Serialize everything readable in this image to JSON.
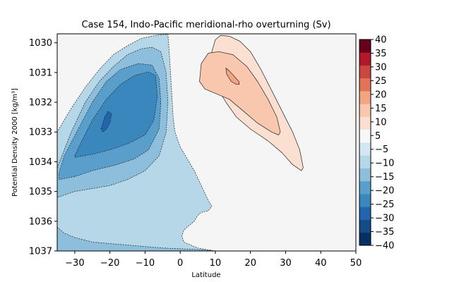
{
  "chart_data": {
    "type": "contour",
    "title": "Case 154, Indo-Pacific meridional-rho overturning (Sv)",
    "xlabel": "Latitude",
    "ylabel": "Potential Density 2000 [kg/m³]",
    "xlim": [
      -35,
      50
    ],
    "ylim": [
      1037,
      1029.7
    ],
    "xticks": [
      -30,
      -20,
      -10,
      0,
      10,
      20,
      30,
      40,
      50
    ],
    "yticks": [
      1030,
      1031,
      1032,
      1033,
      1034,
      1035,
      1036,
      1037
    ],
    "colorbar": {
      "ticks": [
        -40,
        -35,
        -30,
        -25,
        -20,
        -15,
        -10,
        -5,
        5,
        10,
        15,
        20,
        25,
        30,
        35,
        40
      ],
      "levels": [
        {
          "min": -40,
          "max": -35,
          "color": "#053061"
        },
        {
          "min": -35,
          "max": -30,
          "color": "#134c87"
        },
        {
          "min": -30,
          "max": -25,
          "color": "#2166ac"
        },
        {
          "min": -25,
          "max": -20,
          "color": "#3a87bd"
        },
        {
          "min": -20,
          "max": -15,
          "color": "#5a9fcb"
        },
        {
          "min": -15,
          "max": -10,
          "color": "#8dbfdc"
        },
        {
          "min": -10,
          "max": -5,
          "color": "#b6d7e8"
        },
        {
          "min": -5,
          "max": 0,
          "color": "#d4e6f1"
        },
        {
          "min": 0,
          "max": 5,
          "color": "#f7f7f7"
        },
        {
          "min": 5,
          "max": 10,
          "color": "#fbe0d1"
        },
        {
          "min": 10,
          "max": 15,
          "color": "#f8c7ae"
        },
        {
          "min": 15,
          "max": 20,
          "color": "#f3a481"
        },
        {
          "min": 20,
          "max": 25,
          "color": "#e07459"
        },
        {
          "min": 25,
          "max": 30,
          "color": "#c94741"
        },
        {
          "min": 30,
          "max": 35,
          "color": "#b2182b"
        },
        {
          "min": 35,
          "max": 40,
          "color": "#67001f"
        }
      ]
    },
    "background_color": "#f5f5f5",
    "regions": [
      {
        "name": "neg-level-1",
        "level": -5,
        "points": [
          [
            -35,
            1037
          ],
          [
            -35,
            1033.0
          ],
          [
            -31,
            1032.2
          ],
          [
            -27,
            1031.5
          ],
          [
            -23,
            1030.9
          ],
          [
            -19,
            1030.4
          ],
          [
            -15,
            1030.1
          ],
          [
            -11,
            1029.85
          ],
          [
            -6,
            1029.73
          ],
          [
            -3.5,
            1029.72
          ],
          [
            -3,
            1030.5
          ],
          [
            -2.5,
            1031.5
          ],
          [
            -2,
            1032.5
          ],
          [
            -1.5,
            1033.0
          ],
          [
            0,
            1033.5
          ],
          [
            2,
            1033.9
          ],
          [
            4,
            1034.3
          ],
          [
            6,
            1034.8
          ],
          [
            8,
            1035.3
          ],
          [
            9,
            1035.5
          ],
          [
            8,
            1035.65
          ],
          [
            6,
            1035.7
          ],
          [
            5,
            1035.8
          ],
          [
            4,
            1036.0
          ],
          [
            3,
            1036.1
          ],
          [
            2,
            1036.2
          ],
          [
            1,
            1036.3
          ],
          [
            0.5,
            1036.5
          ],
          [
            1,
            1036.7
          ],
          [
            3,
            1036.8
          ],
          [
            5,
            1036.9
          ],
          [
            10,
            1037.0
          ],
          [
            -35,
            1037.0
          ]
        ]
      },
      {
        "name": "neg-level-2",
        "level": -10,
        "points": [
          [
            -35,
            1034.2
          ],
          [
            -31,
            1033.0
          ],
          [
            -27,
            1032.0
          ],
          [
            -23,
            1031.3
          ],
          [
            -19,
            1030.8
          ],
          [
            -15,
            1030.4
          ],
          [
            -11,
            1030.2
          ],
          [
            -8,
            1030.15
          ],
          [
            -5.5,
            1030.3
          ],
          [
            -4,
            1031.0
          ],
          [
            -3.5,
            1032.0
          ],
          [
            -4,
            1033.0
          ],
          [
            -6,
            1033.8
          ],
          [
            -10,
            1034.3
          ],
          [
            -15,
            1034.6
          ],
          [
            -20,
            1034.8
          ],
          [
            -25,
            1034.9
          ],
          [
            -30,
            1035.0
          ],
          [
            -35,
            1035.2
          ]
        ]
      },
      {
        "name": "neg-level-3",
        "level": -15,
        "points": [
          [
            -34.5,
            1034.4
          ],
          [
            -33,
            1033.8
          ],
          [
            -29,
            1032.9
          ],
          [
            -25,
            1032.0
          ],
          [
            -21,
            1031.3
          ],
          [
            -17,
            1030.9
          ],
          [
            -12,
            1030.7
          ],
          [
            -8,
            1030.75
          ],
          [
            -6,
            1031.2
          ],
          [
            -5.5,
            1032.0
          ],
          [
            -6,
            1032.9
          ],
          [
            -9,
            1033.6
          ],
          [
            -13,
            1033.9
          ],
          [
            -18,
            1034.1
          ],
          [
            -25,
            1034.3
          ],
          [
            -30,
            1034.5
          ],
          [
            -34.5,
            1034.6
          ]
        ]
      },
      {
        "name": "neg-level-4",
        "level": -20,
        "points": [
          [
            -30,
            1033.8
          ],
          [
            -28,
            1033.3
          ],
          [
            -25,
            1032.6
          ],
          [
            -21,
            1031.9
          ],
          [
            -17,
            1031.4
          ],
          [
            -13,
            1031.1
          ],
          [
            -9,
            1030.98
          ],
          [
            -7,
            1031.1
          ],
          [
            -6.5,
            1031.8
          ],
          [
            -7.5,
            1032.6
          ],
          [
            -10,
            1033.1
          ],
          [
            -15,
            1033.4
          ],
          [
            -20,
            1033.6
          ],
          [
            -25,
            1033.75
          ],
          [
            -30,
            1033.85
          ]
        ]
      },
      {
        "name": "neg-level-5",
        "level": -25,
        "points": [
          [
            -22.5,
            1032.9
          ],
          [
            -21.5,
            1032.5
          ],
          [
            -20.5,
            1032.3
          ],
          [
            -19.5,
            1032.4
          ],
          [
            -20,
            1032.7
          ],
          [
            -21,
            1032.9
          ],
          [
            -22,
            1033.0
          ]
        ]
      },
      {
        "name": "neg-level-bottom",
        "level": -10,
        "points": [
          [
            -35,
            1036.2
          ],
          [
            -33,
            1036.4
          ],
          [
            -30,
            1036.55
          ],
          [
            -25,
            1036.7
          ],
          [
            -20,
            1036.75
          ],
          [
            -15,
            1036.8
          ],
          [
            -5,
            1036.9
          ],
          [
            5,
            1036.95
          ],
          [
            10,
            1037.0
          ],
          [
            -35,
            1037.0
          ]
        ]
      },
      {
        "name": "pos-level-1",
        "level": 5,
        "points": [
          [
            9,
            1030.3
          ],
          [
            10,
            1029.9
          ],
          [
            11.5,
            1029.75
          ],
          [
            14,
            1029.78
          ],
          [
            17,
            1029.95
          ],
          [
            20,
            1030.3
          ],
          [
            23,
            1030.9
          ],
          [
            26,
            1031.6
          ],
          [
            29,
            1032.3
          ],
          [
            32,
            1033.0
          ],
          [
            34,
            1033.6
          ],
          [
            35,
            1034.2
          ],
          [
            34.5,
            1034.3
          ],
          [
            32,
            1034.1
          ],
          [
            29,
            1033.7
          ],
          [
            25,
            1033.3
          ],
          [
            20,
            1032.9
          ],
          [
            16,
            1032.5
          ],
          [
            13,
            1032.0
          ],
          [
            10.5,
            1031.5
          ],
          [
            9.2,
            1031.0
          ],
          [
            8.8,
            1030.6
          ]
        ]
      },
      {
        "name": "pos-level-2",
        "level": 10,
        "points": [
          [
            5.5,
            1031.3
          ],
          [
            6,
            1030.7
          ],
          [
            8,
            1030.35
          ],
          [
            11,
            1030.3
          ],
          [
            15,
            1030.4
          ],
          [
            19,
            1030.8
          ],
          [
            22,
            1031.3
          ],
          [
            25,
            1031.9
          ],
          [
            27.5,
            1032.5
          ],
          [
            28.5,
            1033.0
          ],
          [
            28,
            1033.1
          ],
          [
            26,
            1033.0
          ],
          [
            22,
            1032.7
          ],
          [
            18,
            1032.3
          ],
          [
            14,
            1031.9
          ],
          [
            10,
            1031.7
          ],
          [
            7,
            1031.55
          ]
        ]
      },
      {
        "name": "pos-level-3",
        "level": 15,
        "points": [
          [
            13,
            1030.85
          ],
          [
            14,
            1030.95
          ],
          [
            16.7,
            1031.3
          ],
          [
            16.8,
            1031.4
          ],
          [
            16,
            1031.4
          ],
          [
            14.5,
            1031.3
          ],
          [
            13.2,
            1031.05
          ]
        ]
      }
    ]
  }
}
